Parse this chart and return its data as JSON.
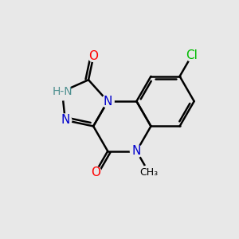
{
  "bg_color": "#e8e8e8",
  "bond_color": "#000000",
  "bond_width": 1.8,
  "N_color": "#0000cc",
  "O_color": "#ff0000",
  "Cl_color": "#00bb00",
  "H_color": "#4e9090",
  "C_color": "#000000",
  "font_size": 11,
  "font_size_small": 10,
  "xlim": [
    -3.8,
    4.5
  ],
  "ylim": [
    -2.8,
    3.8
  ]
}
